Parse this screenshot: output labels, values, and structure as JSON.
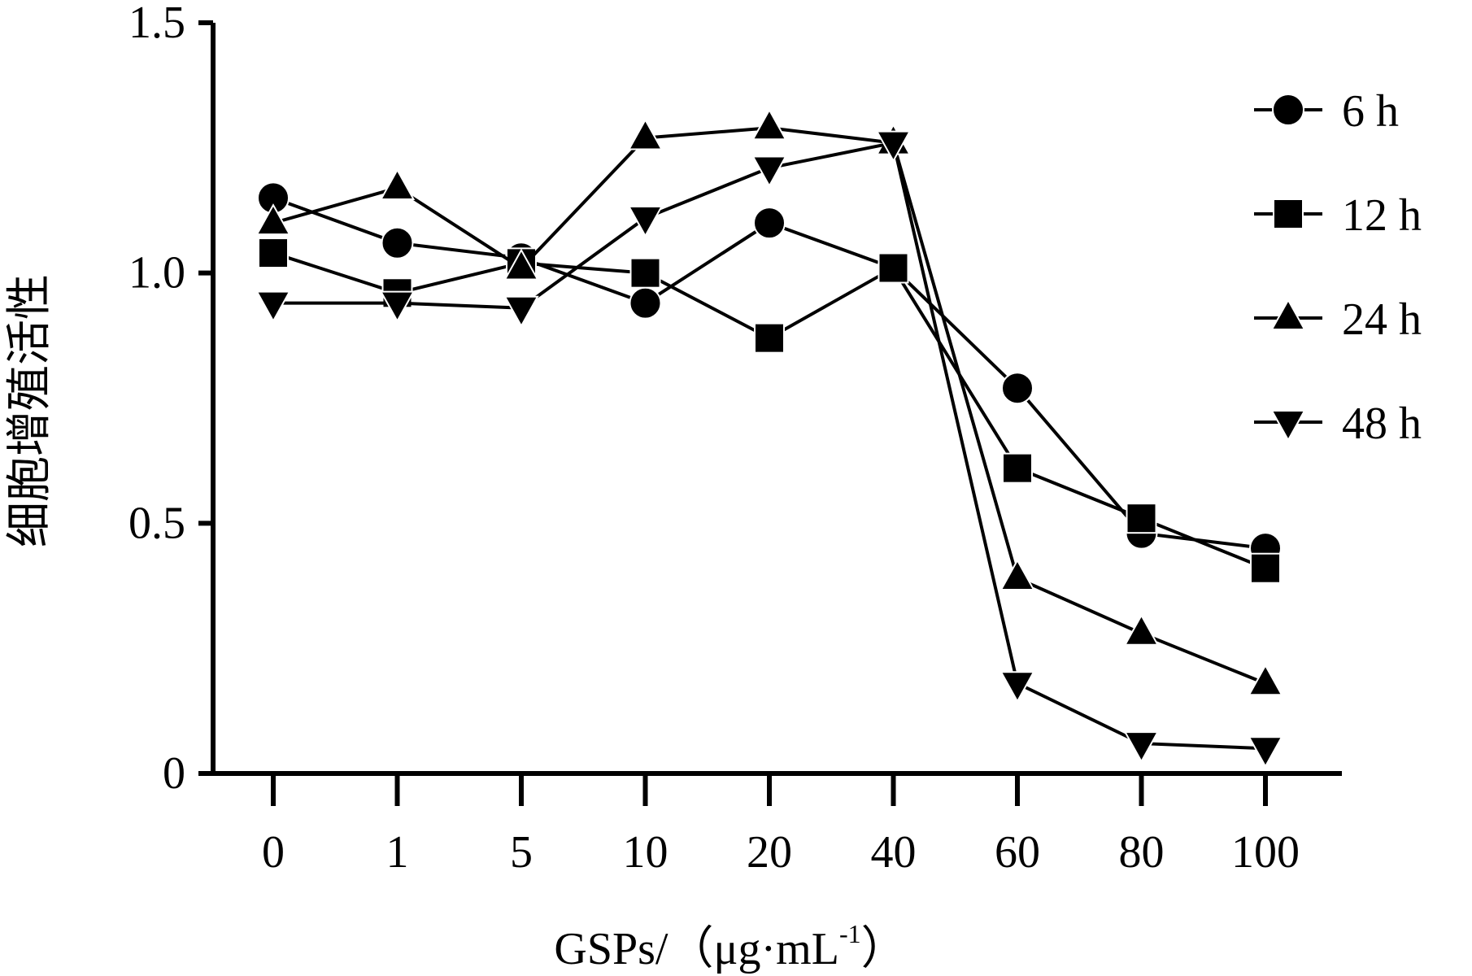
{
  "chart_data": {
    "type": "line",
    "categories": [
      "0",
      "1",
      "5",
      "10",
      "20",
      "40",
      "60",
      "80",
      "100"
    ],
    "xlabel": "GSPs/（μg·mL",
    "xlabel_sup": "-1",
    "xlabel_end": "）",
    "ylabel": "细胞增殖活性",
    "ylim": [
      0,
      1.5
    ],
    "yticks": [
      {
        "value": 0,
        "label": "0"
      },
      {
        "value": 0.5,
        "label": "0.5"
      },
      {
        "value": 1.0,
        "label": "1.0"
      },
      {
        "value": 1.5,
        "label": "1.5"
      }
    ],
    "grid": false,
    "legend_position": "top-right",
    "series": [
      {
        "name": "6 h",
        "marker": "circle",
        "values": [
          1.15,
          1.06,
          1.03,
          0.94,
          1.1,
          1.01,
          0.77,
          0.48,
          0.45
        ]
      },
      {
        "name": "12 h",
        "marker": "square",
        "values": [
          1.04,
          0.96,
          1.02,
          1.0,
          0.87,
          1.01,
          0.61,
          0.51,
          0.41
        ]
      },
      {
        "name": "24 h",
        "marker": "triangle-up",
        "values": [
          1.1,
          1.17,
          1.01,
          1.27,
          1.29,
          1.26,
          0.39,
          0.28,
          0.18
        ]
      },
      {
        "name": "48 h",
        "marker": "triangle-down",
        "values": [
          0.94,
          0.94,
          0.93,
          1.11,
          1.21,
          1.26,
          0.18,
          0.06,
          0.05
        ]
      }
    ]
  }
}
